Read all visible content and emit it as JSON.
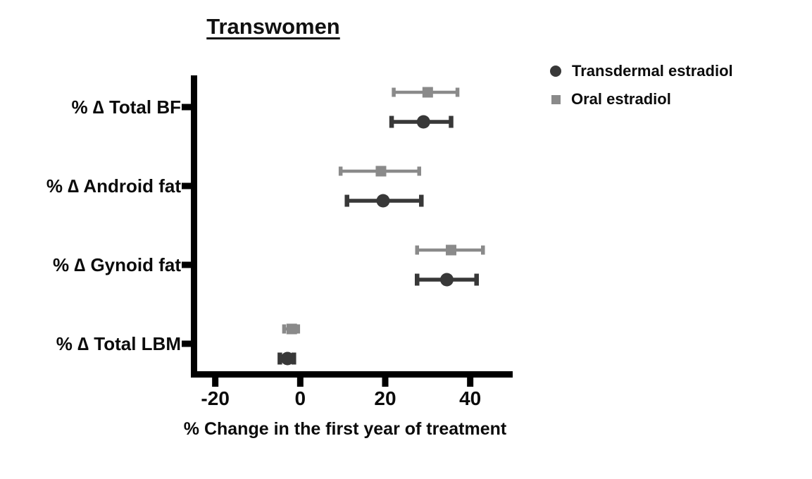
{
  "title": "Transwomen",
  "legend": [
    {
      "name": "Transdermal estradiol",
      "marker": "circle",
      "color": "#383838"
    },
    {
      "name": "Oral estradiol",
      "marker": "square",
      "color": "#8a8a8a"
    }
  ],
  "chart_data": {
    "type": "scatter",
    "subtype": "horizontal-dot-plot-with-error-bars",
    "title": "Transwomen",
    "xlabel": "% Change in the first year of treatment",
    "ylabel": "",
    "xlim": [
      -25,
      50
    ],
    "xticks": [
      -20,
      0,
      20,
      40
    ],
    "grid": false,
    "legend_position": "top-right",
    "categories": [
      "% ∆ Total BF",
      "% ∆ Android fat",
      "% ∆ Gynoid fat",
      "% ∆ Total LBM"
    ],
    "series": [
      {
        "name": "Transdermal estradiol",
        "marker": "circle",
        "color": "#383838",
        "values": [
          29,
          19.5,
          34.5,
          -3
        ],
        "ci_low": [
          21.5,
          11,
          27.5,
          -4.8
        ],
        "ci_high": [
          35.5,
          28.5,
          41.5,
          -1.5
        ]
      },
      {
        "name": "Oral estradiol",
        "marker": "square",
        "color": "#8a8a8a",
        "values": [
          30,
          19,
          35.5,
          -2
        ],
        "ci_low": [
          22,
          9.5,
          27.5,
          -3.8
        ],
        "ci_high": [
          37,
          28,
          43,
          -0.5
        ]
      }
    ]
  }
}
